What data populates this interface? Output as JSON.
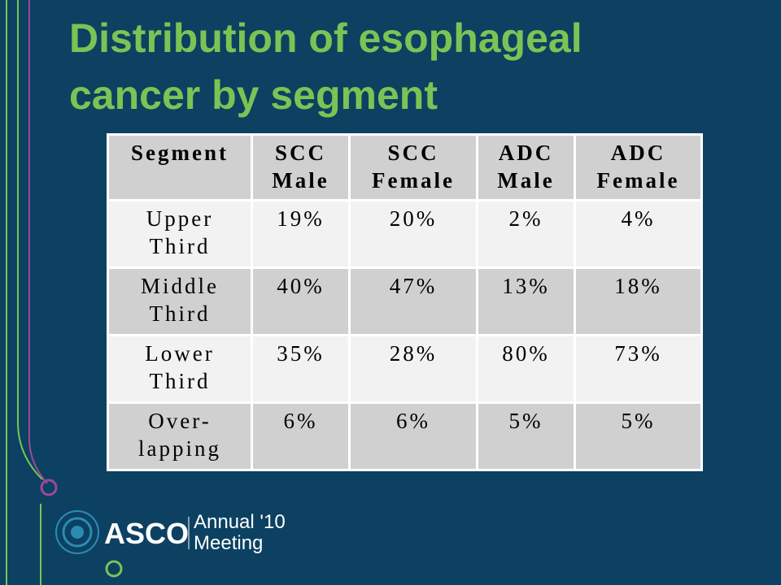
{
  "title": "Distribution of esophageal\ncancer by segment",
  "table": {
    "header": [
      "Segment",
      "SCC\nMale",
      "SCC\nFemale",
      "ADC\nMale",
      "ADC\nFemale"
    ],
    "rows": [
      [
        "Upper\nThird",
        "19%",
        "20%",
        "2%",
        "4%"
      ],
      [
        "Middle\nThird",
        "40%",
        "47%",
        "13%",
        "18%"
      ],
      [
        "Lower\nThird",
        "35%",
        "28%",
        "80%",
        "73%"
      ],
      [
        "Over-\nlapping",
        "6%",
        "6%",
        "5%",
        "5%"
      ]
    ]
  },
  "logo": {
    "brand": "ASCO",
    "event_line1": "Annual '10",
    "event_line2": "Meeting"
  }
}
